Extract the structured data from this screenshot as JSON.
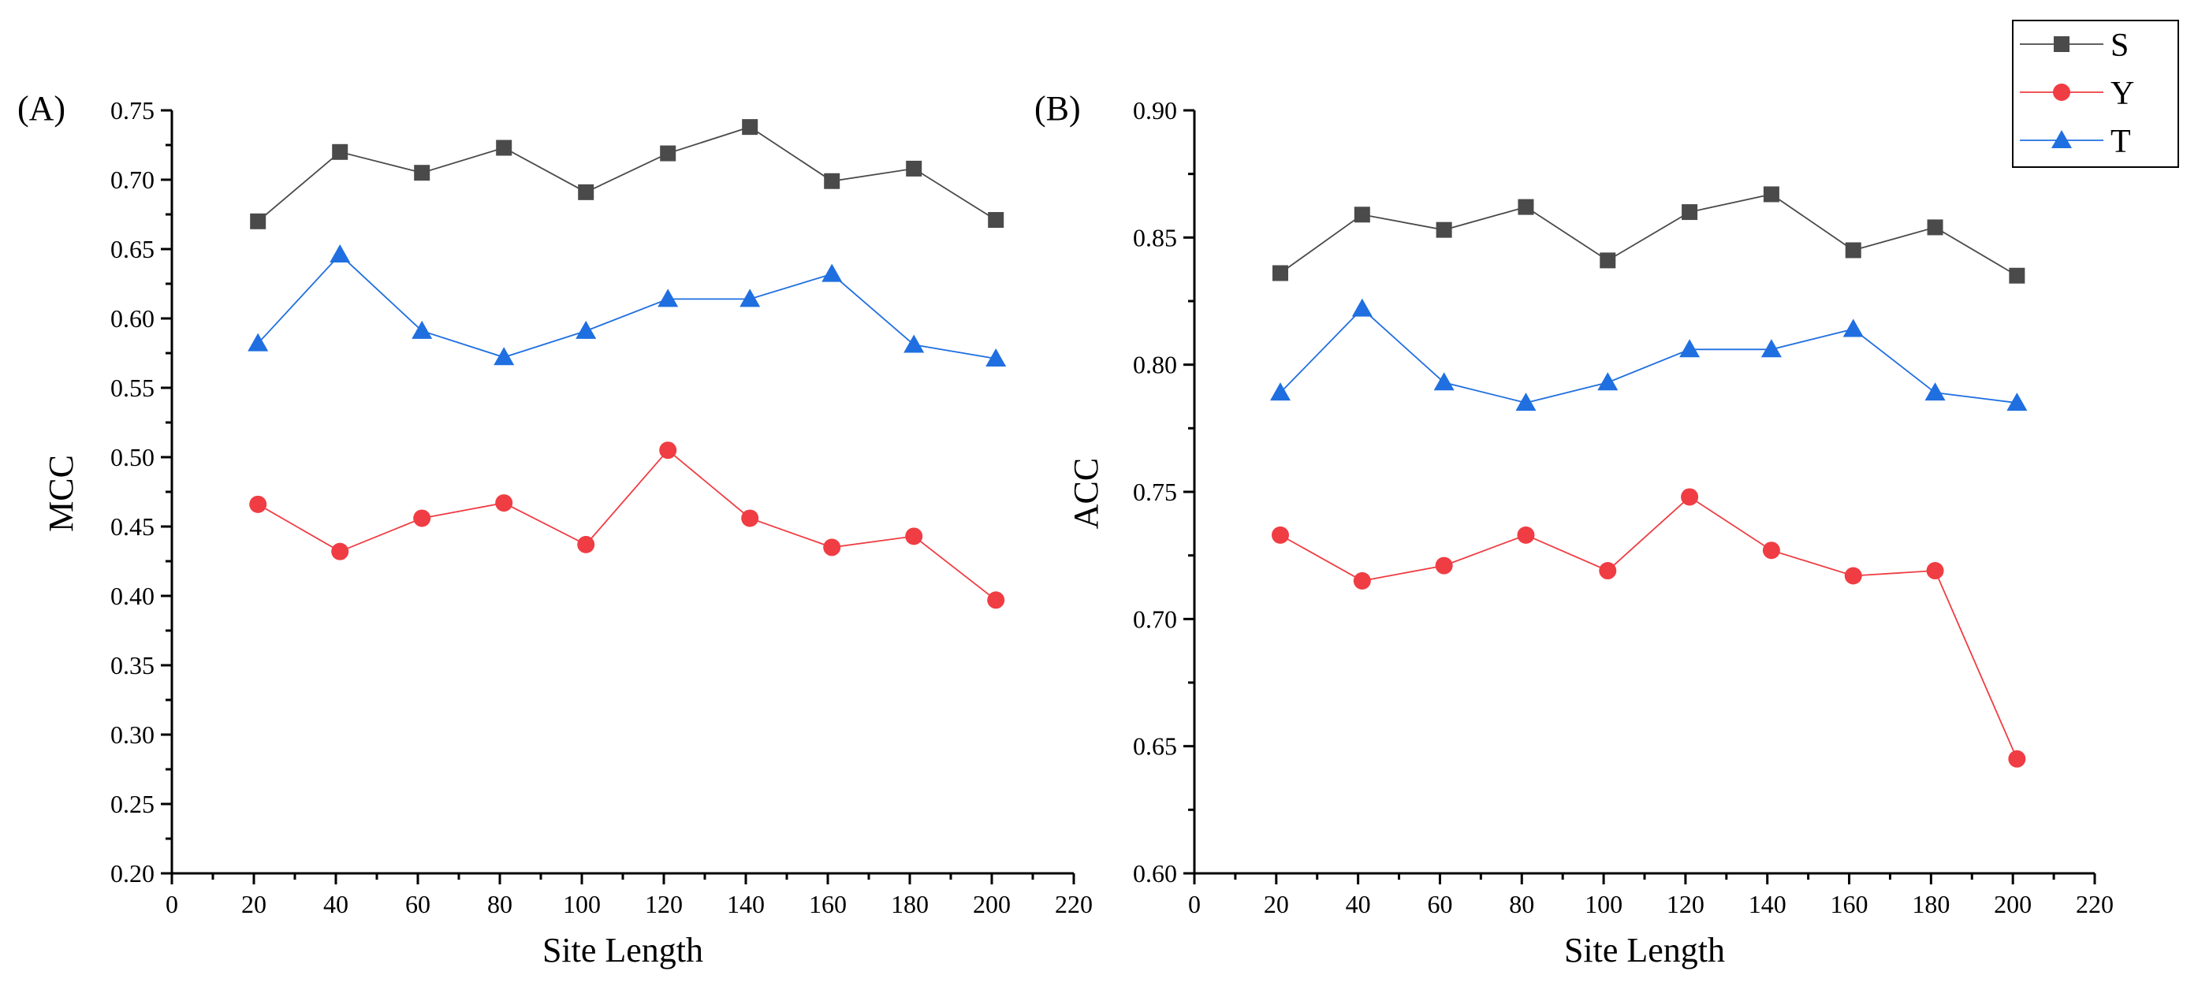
{
  "legend": {
    "entries": [
      {
        "name": "S",
        "color": "#4a4a4a",
        "marker": "square"
      },
      {
        "name": "Y",
        "color": "#ef3d43",
        "marker": "circle"
      },
      {
        "name": "T",
        "color": "#1f6fe0",
        "marker": "triangle"
      }
    ]
  },
  "chart_data": [
    {
      "type": "line",
      "panel_label": "(A)",
      "xlabel": "Site Length",
      "ylabel": "MCC",
      "xlim": [
        0,
        220
      ],
      "ylim": [
        0.2,
        0.75
      ],
      "x_ticks": [
        "0",
        "20",
        "40",
        "60",
        "80",
        "100",
        "120",
        "140",
        "160",
        "180",
        "200",
        "220"
      ],
      "y_ticks": [
        "0.20",
        "0.25",
        "0.30",
        "0.35",
        "0.40",
        "0.45",
        "0.50",
        "0.55",
        "0.60",
        "0.65",
        "0.70",
        "0.75"
      ],
      "x": [
        21,
        41,
        61,
        81,
        101,
        121,
        141,
        161,
        181,
        201
      ],
      "series": [
        {
          "name": "S",
          "values": [
            0.67,
            0.72,
            0.705,
            0.723,
            0.691,
            0.719,
            0.738,
            0.699,
            0.708,
            0.671
          ]
        },
        {
          "name": "Y",
          "values": [
            0.466,
            0.432,
            0.456,
            0.467,
            0.437,
            0.505,
            0.456,
            0.435,
            0.443,
            0.397
          ]
        },
        {
          "name": "T",
          "values": [
            0.582,
            0.646,
            0.591,
            0.572,
            0.591,
            0.614,
            0.614,
            0.632,
            0.581,
            0.571
          ]
        }
      ],
      "grid": false
    },
    {
      "type": "line",
      "panel_label": "(B)",
      "xlabel": "Site Length",
      "ylabel": "ACC",
      "xlim": [
        0,
        220
      ],
      "ylim": [
        0.6,
        0.9
      ],
      "x_ticks": [
        "0",
        "20",
        "40",
        "60",
        "80",
        "100",
        "120",
        "140",
        "160",
        "180",
        "200",
        "220"
      ],
      "y_ticks": [
        "0.60",
        "0.65",
        "0.70",
        "0.75",
        "0.80",
        "0.85",
        "0.90"
      ],
      "x": [
        21,
        41,
        61,
        81,
        101,
        121,
        141,
        161,
        181,
        201
      ],
      "series": [
        {
          "name": "S",
          "values": [
            0.836,
            0.859,
            0.853,
            0.862,
            0.841,
            0.86,
            0.867,
            0.845,
            0.854,
            0.835
          ]
        },
        {
          "name": "Y",
          "values": [
            0.733,
            0.715,
            0.721,
            0.733,
            0.719,
            0.748,
            0.727,
            0.717,
            0.719,
            0.645
          ]
        },
        {
          "name": "T",
          "values": [
            0.789,
            0.822,
            0.793,
            0.785,
            0.793,
            0.806,
            0.806,
            0.814,
            0.789,
            0.785
          ]
        }
      ],
      "grid": false
    }
  ]
}
